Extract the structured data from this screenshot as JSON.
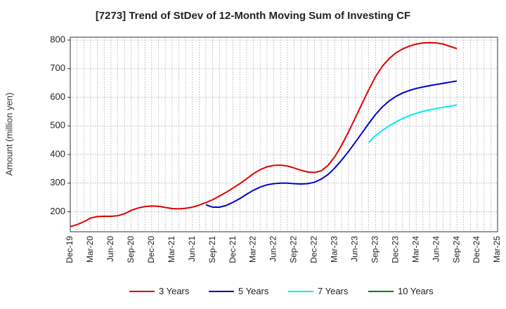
{
  "chart_data": {
    "type": "line",
    "title": "[7273]  Trend of StDev of 12-Month Moving Sum of Investing CF",
    "ylabel": "Amount (million yen)",
    "xlabel": "",
    "ylim": [
      130,
      810
    ],
    "yticks": [
      200,
      300,
      400,
      500,
      600,
      700,
      800
    ],
    "xlim": [
      "2019-12",
      "2025-03"
    ],
    "x_tick_labels": [
      "Dec-19",
      "Mar-20",
      "Jun-20",
      "Sep-20",
      "Dec-20",
      "Mar-21",
      "Jun-21",
      "Sep-21",
      "Dec-21",
      "Mar-22",
      "Jun-22",
      "Sep-22",
      "Dec-22",
      "Mar-23",
      "Jun-23",
      "Sep-23",
      "Dec-23",
      "Mar-24",
      "Jun-24",
      "Sep-24",
      "Dec-24",
      "Mar-25"
    ],
    "grid": true,
    "legend_position": "bottom",
    "series": [
      {
        "name": "3 Years",
        "color": "#dd0000",
        "points": [
          [
            "2019-12",
            148
          ],
          [
            "2020-01",
            155
          ],
          [
            "2020-02",
            165
          ],
          [
            "2020-03",
            178
          ],
          [
            "2020-04",
            183
          ],
          [
            "2020-05",
            184
          ],
          [
            "2020-06",
            184
          ],
          [
            "2020-07",
            186
          ],
          [
            "2020-08",
            193
          ],
          [
            "2020-09",
            205
          ],
          [
            "2020-10",
            213
          ],
          [
            "2020-11",
            218
          ],
          [
            "2020-12",
            220
          ],
          [
            "2021-01",
            219
          ],
          [
            "2021-02",
            215
          ],
          [
            "2021-03",
            211
          ],
          [
            "2021-04",
            210
          ],
          [
            "2021-05",
            212
          ],
          [
            "2021-06",
            216
          ],
          [
            "2021-07",
            223
          ],
          [
            "2021-08",
            232
          ],
          [
            "2021-09",
            242
          ],
          [
            "2021-10",
            255
          ],
          [
            "2021-11",
            268
          ],
          [
            "2021-12",
            283
          ],
          [
            "2022-01",
            298
          ],
          [
            "2022-02",
            315
          ],
          [
            "2022-03",
            333
          ],
          [
            "2022-04",
            347
          ],
          [
            "2022-05",
            357
          ],
          [
            "2022-06",
            362
          ],
          [
            "2022-07",
            363
          ],
          [
            "2022-08",
            360
          ],
          [
            "2022-09",
            353
          ],
          [
            "2022-10",
            345
          ],
          [
            "2022-11",
            339
          ],
          [
            "2022-12",
            337
          ],
          [
            "2023-01",
            343
          ],
          [
            "2023-02",
            362
          ],
          [
            "2023-03",
            392
          ],
          [
            "2023-04",
            432
          ],
          [
            "2023-05",
            478
          ],
          [
            "2023-06",
            527
          ],
          [
            "2023-07",
            577
          ],
          [
            "2023-08",
            626
          ],
          [
            "2023-09",
            672
          ],
          [
            "2023-10",
            708
          ],
          [
            "2023-11",
            735
          ],
          [
            "2023-12",
            755
          ],
          [
            "2024-01",
            769
          ],
          [
            "2024-02",
            779
          ],
          [
            "2024-03",
            786
          ],
          [
            "2024-04",
            790
          ],
          [
            "2024-05",
            791
          ],
          [
            "2024-06",
            790
          ],
          [
            "2024-07",
            786
          ],
          [
            "2024-08",
            778
          ],
          [
            "2024-09",
            770
          ]
        ]
      },
      {
        "name": "5 Years",
        "color": "#0000cc",
        "points": [
          [
            "2021-08",
            224
          ],
          [
            "2021-09",
            216
          ],
          [
            "2021-10",
            216
          ],
          [
            "2021-11",
            222
          ],
          [
            "2021-12",
            233
          ],
          [
            "2022-01",
            246
          ],
          [
            "2022-02",
            261
          ],
          [
            "2022-03",
            275
          ],
          [
            "2022-04",
            286
          ],
          [
            "2022-05",
            294
          ],
          [
            "2022-06",
            298
          ],
          [
            "2022-07",
            300
          ],
          [
            "2022-08",
            300
          ],
          [
            "2022-09",
            298
          ],
          [
            "2022-10",
            297
          ],
          [
            "2022-11",
            298
          ],
          [
            "2022-12",
            303
          ],
          [
            "2023-01",
            314
          ],
          [
            "2023-02",
            330
          ],
          [
            "2023-03",
            353
          ],
          [
            "2023-04",
            380
          ],
          [
            "2023-05",
            410
          ],
          [
            "2023-06",
            442
          ],
          [
            "2023-07",
            475
          ],
          [
            "2023-08",
            508
          ],
          [
            "2023-09",
            540
          ],
          [
            "2023-10",
            566
          ],
          [
            "2023-11",
            587
          ],
          [
            "2023-12",
            603
          ],
          [
            "2024-01",
            615
          ],
          [
            "2024-02",
            624
          ],
          [
            "2024-03",
            631
          ],
          [
            "2024-04",
            636
          ],
          [
            "2024-05",
            641
          ],
          [
            "2024-06",
            645
          ],
          [
            "2024-07",
            649
          ],
          [
            "2024-08",
            653
          ],
          [
            "2024-09",
            657
          ]
        ]
      },
      {
        "name": "7 Years",
        "color": "#00eeee",
        "points": [
          [
            "2023-08",
            442
          ],
          [
            "2023-09",
            466
          ],
          [
            "2023-10",
            484
          ],
          [
            "2023-11",
            500
          ],
          [
            "2023-12",
            514
          ],
          [
            "2024-01",
            526
          ],
          [
            "2024-02",
            536
          ],
          [
            "2024-03",
            544
          ],
          [
            "2024-04",
            551
          ],
          [
            "2024-05",
            556
          ],
          [
            "2024-06",
            561
          ],
          [
            "2024-07",
            565
          ],
          [
            "2024-08",
            569
          ],
          [
            "2024-09",
            573
          ]
        ]
      },
      {
        "name": "10 Years",
        "color": "#008000",
        "points": []
      }
    ]
  }
}
